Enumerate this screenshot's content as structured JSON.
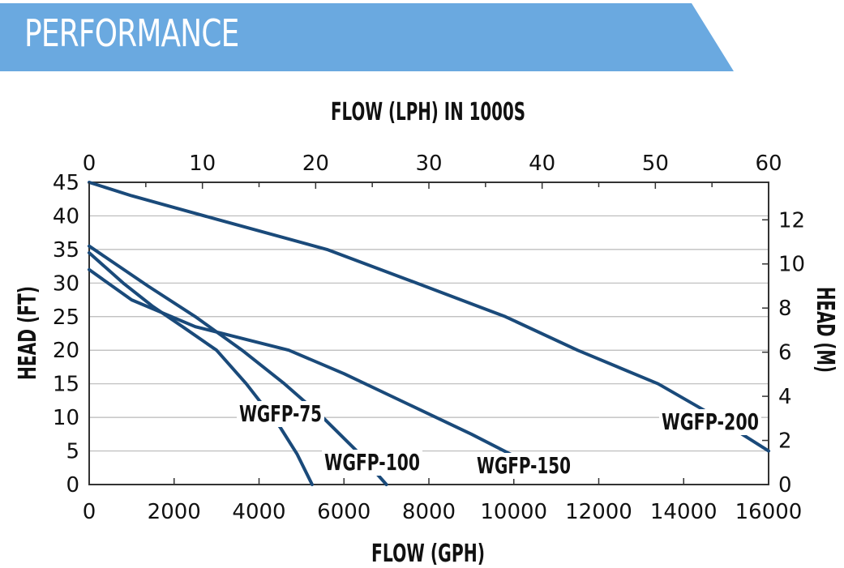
{
  "banner": {
    "title": "PERFORMANCE",
    "color": "#6aa9e0"
  },
  "chart_data": {
    "type": "line",
    "title": "",
    "xlabel": "FLOW (GPH)",
    "x2label": "FLOW (LPH) IN 1000S",
    "ylabel": "HEAD (FT)",
    "y2label": "HEAD (M)",
    "xlim": [
      0,
      16000
    ],
    "ylim": [
      0,
      45
    ],
    "x2lim": [
      0,
      60
    ],
    "y2lim": [
      0,
      13.7
    ],
    "x_ticks": [
      "0",
      "2000",
      "4000",
      "6000",
      "8000",
      "10000",
      "12000",
      "14000",
      "16000"
    ],
    "x2_ticks": [
      "0",
      "10",
      "20",
      "30",
      "40",
      "50",
      "60"
    ],
    "y_ticks": [
      "0",
      "5",
      "10",
      "15",
      "20",
      "25",
      "30",
      "35",
      "40",
      "45"
    ],
    "y2_ticks": [
      "0",
      "2",
      "4",
      "6",
      "8",
      "10",
      "12"
    ],
    "grid": true,
    "line_color": "#1a4a7a",
    "series": [
      {
        "label": "WGFP-75",
        "x": [
          0,
          800,
          1500,
          2200,
          3000,
          3700,
          4500,
          4900,
          5250
        ],
        "y": [
          34.5,
          30,
          26.5,
          23.5,
          20,
          15,
          8.5,
          4.5,
          0
        ]
      },
      {
        "label": "WGFP-100",
        "x": [
          0,
          1400,
          2500,
          3600,
          4600,
          5500,
          6300,
          7000
        ],
        "y": [
          35.5,
          29.5,
          25,
          20,
          15,
          10,
          5,
          0
        ]
      },
      {
        "label": "WGFP-150",
        "x": [
          0,
          1000,
          2500,
          4700,
          6000,
          7500,
          9000,
          10700
        ],
        "y": [
          32,
          27.5,
          23.5,
          20,
          16.5,
          12,
          7.5,
          2
        ]
      },
      {
        "label": "WGFP-200",
        "x": [
          0,
          1000,
          3000,
          5600,
          7500,
          9800,
          11500,
          13400,
          14500,
          16000
        ],
        "y": [
          45,
          43,
          39.5,
          35,
          30.5,
          25,
          20,
          15,
          11,
          5
        ]
      }
    ]
  }
}
